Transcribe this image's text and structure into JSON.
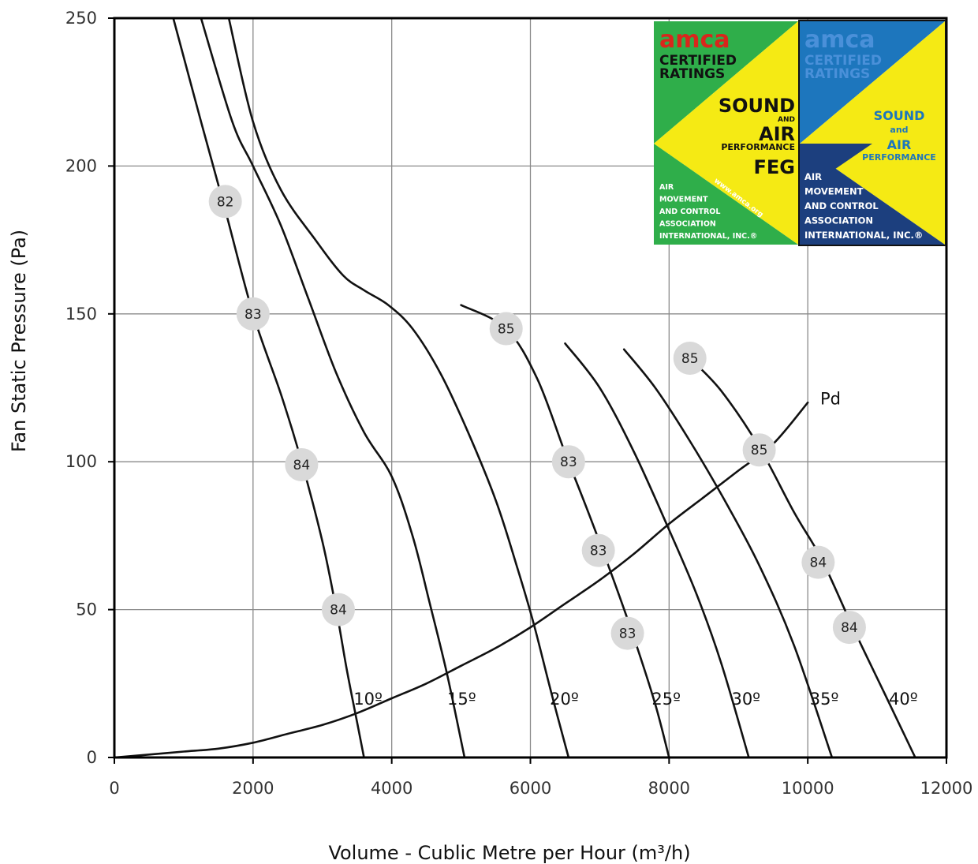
{
  "chart_data": {
    "type": "line",
    "xlabel": "Volume - Cublic Metre per Hour (m³/h)",
    "ylabel": "Fan Static Pressure (Pa)",
    "xlim": [
      0,
      12000
    ],
    "ylim": [
      0,
      250
    ],
    "xticks": [
      0,
      2000,
      4000,
      6000,
      8000,
      10000,
      12000
    ],
    "yticks": [
      0,
      50,
      100,
      150,
      200,
      250
    ],
    "grid": true,
    "series": [
      {
        "name": "10º",
        "label_at": [
          3450,
          20
        ],
        "points": [
          [
            850,
            250
          ],
          [
            1250,
            215
          ],
          [
            1600,
            185
          ],
          [
            2000,
            150
          ],
          [
            2400,
            123
          ],
          [
            2700,
            100
          ],
          [
            3000,
            73
          ],
          [
            3200,
            50
          ],
          [
            3350,
            30
          ],
          [
            3500,
            12
          ],
          [
            3600,
            0
          ]
        ]
      },
      {
        "name": "15º",
        "label_at": [
          4800,
          20
        ],
        "points": [
          [
            1250,
            250
          ],
          [
            1700,
            215
          ],
          [
            2000,
            200
          ],
          [
            2400,
            180
          ],
          [
            2800,
            155
          ],
          [
            3200,
            130
          ],
          [
            3600,
            110
          ],
          [
            4000,
            95
          ],
          [
            4300,
            75
          ],
          [
            4550,
            52
          ],
          [
            4800,
            28
          ],
          [
            5050,
            0
          ]
        ]
      },
      {
        "name": "20º",
        "label_at": [
          6280,
          20
        ],
        "points": [
          [
            1650,
            250
          ],
          [
            2000,
            215
          ],
          [
            2400,
            192
          ],
          [
            2900,
            175
          ],
          [
            3300,
            163
          ],
          [
            3600,
            158
          ],
          [
            3950,
            153
          ],
          [
            4300,
            145
          ],
          [
            4700,
            130
          ],
          [
            5100,
            110
          ],
          [
            5500,
            87
          ],
          [
            5800,
            65
          ],
          [
            6050,
            45
          ],
          [
            6300,
            22
          ],
          [
            6550,
            0
          ]
        ]
      },
      {
        "name": "25º",
        "label_at": [
          7750,
          20
        ],
        "points": [
          [
            5000,
            153
          ],
          [
            5650,
            145
          ],
          [
            6100,
            128
          ],
          [
            6500,
            103
          ],
          [
            6850,
            82
          ],
          [
            7200,
            60
          ],
          [
            7500,
            40
          ],
          [
            7800,
            18
          ],
          [
            8000,
            0
          ]
        ]
      },
      {
        "name": "30º",
        "label_at": [
          8900,
          20
        ],
        "points": [
          [
            6500,
            140
          ],
          [
            7000,
            125
          ],
          [
            7500,
            103
          ],
          [
            8000,
            77
          ],
          [
            8400,
            55
          ],
          [
            8750,
            32
          ],
          [
            9150,
            0
          ]
        ]
      },
      {
        "name": "35º",
        "label_at": [
          10030,
          20
        ],
        "points": [
          [
            7350,
            138
          ],
          [
            7800,
            125
          ],
          [
            8300,
            107
          ],
          [
            8800,
            87
          ],
          [
            9300,
            65
          ],
          [
            9800,
            38
          ],
          [
            10350,
            0
          ]
        ]
      },
      {
        "name": "40º",
        "label_at": [
          11170,
          20
        ],
        "points": [
          [
            8300,
            135
          ],
          [
            8750,
            124
          ],
          [
            9300,
            105
          ],
          [
            9800,
            83
          ],
          [
            10200,
            67
          ],
          [
            10650,
            44
          ],
          [
            11100,
            22
          ],
          [
            11550,
            0
          ]
        ]
      },
      {
        "name": "Pd",
        "label_at": [
          10180,
          122
        ],
        "points": [
          [
            0,
            0
          ],
          [
            500,
            1
          ],
          [
            1000,
            2
          ],
          [
            1500,
            3
          ],
          [
            2000,
            5
          ],
          [
            2500,
            8
          ],
          [
            3000,
            11
          ],
          [
            3500,
            15
          ],
          [
            4000,
            20
          ],
          [
            4500,
            25
          ],
          [
            5000,
            31
          ],
          [
            5500,
            37
          ],
          [
            6000,
            44
          ],
          [
            6500,
            52
          ],
          [
            7000,
            60
          ],
          [
            7500,
            69
          ],
          [
            8000,
            79
          ],
          [
            8500,
            88
          ],
          [
            9000,
            97
          ],
          [
            9500,
            106
          ],
          [
            10000,
            120
          ]
        ]
      }
    ],
    "annotations": [
      {
        "text": "82",
        "x": 1600,
        "y": 188
      },
      {
        "text": "83",
        "x": 2000,
        "y": 150
      },
      {
        "text": "84",
        "x": 2700,
        "y": 99
      },
      {
        "text": "84",
        "x": 3230,
        "y": 50
      },
      {
        "text": "85",
        "x": 5650,
        "y": 145
      },
      {
        "text": "83",
        "x": 6550,
        "y": 100
      },
      {
        "text": "83",
        "x": 6980,
        "y": 70
      },
      {
        "text": "83",
        "x": 7400,
        "y": 42
      },
      {
        "text": "85",
        "x": 8300,
        "y": 135
      },
      {
        "text": "85",
        "x": 9300,
        "y": 104
      },
      {
        "text": "84",
        "x": 10150,
        "y": 66
      },
      {
        "text": "84",
        "x": 10600,
        "y": 44
      }
    ]
  },
  "logo_left": {
    "line1": "amca",
    "line2": "CERTIFIED",
    "line3": "RATINGS",
    "sound": "SOUND",
    "and": "AND",
    "air": "AIR",
    "performance": "PERFORMANCE",
    "feg": "FEG",
    "www": "www.amca.org",
    "org": [
      "AIR",
      "MOVEMENT",
      "AND CONTROL",
      "ASSOCIATION",
      "INTERNATIONAL, INC.®"
    ]
  },
  "logo_right": {
    "line1": "amca",
    "line2": "CERTIFIED",
    "line3": "RATINGS",
    "sound": "SOUND",
    "and": "and",
    "air": "AIR",
    "performance": "PERFORMANCE",
    "org": [
      "AIR",
      "MOVEMENT",
      "AND CONTROL",
      "ASSOCIATION",
      "INTERNATIONAL, INC.®"
    ]
  },
  "colors": {
    "curve": "#111111",
    "grid": "#8a8a8a",
    "bubble": "#d9d9d9",
    "logo_green": "#2fae4a",
    "logo_yellow": "#f5ea14",
    "logo_blue": "#1d76bd",
    "logo_navy": "#1c3f7e",
    "logo_red": "#d9261c"
  }
}
